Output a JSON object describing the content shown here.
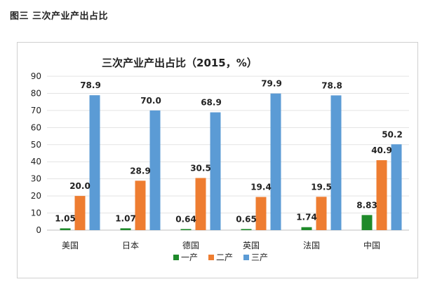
{
  "figure_caption": "图三  三次产业产出占比",
  "chart_data": {
    "type": "bar",
    "title": "三次产业产出占比（2015，%）",
    "categories": [
      "美国",
      "日本",
      "德国",
      "英国",
      "法国",
      "中国"
    ],
    "series": [
      {
        "name": "一产",
        "color": "#1e8a2a",
        "values": [
          1.05,
          1.07,
          0.64,
          0.65,
          1.74,
          8.83
        ],
        "labels": [
          "1.05",
          "1.07",
          "0.64",
          "0.65",
          "1.74",
          "8.83"
        ]
      },
      {
        "name": "二产",
        "color": "#ee7d31",
        "values": [
          20.0,
          28.9,
          30.5,
          19.4,
          19.5,
          40.9
        ],
        "labels": [
          "20.0",
          "28.9",
          "30.5",
          "19.4",
          "19.5",
          "40.9"
        ]
      },
      {
        "name": "三产",
        "color": "#5b9bd5",
        "values": [
          78.9,
          70.0,
          68.9,
          79.9,
          78.8,
          50.2
        ],
        "labels": [
          "78.9",
          "70.0",
          "68.9",
          "79.9",
          "78.8",
          "50.2"
        ]
      }
    ],
    "ylim": [
      0,
      90
    ],
    "yticks": [
      0,
      10,
      20,
      30,
      40,
      50,
      60,
      70,
      80,
      90
    ],
    "grid": true,
    "legend_position": "bottom"
  }
}
